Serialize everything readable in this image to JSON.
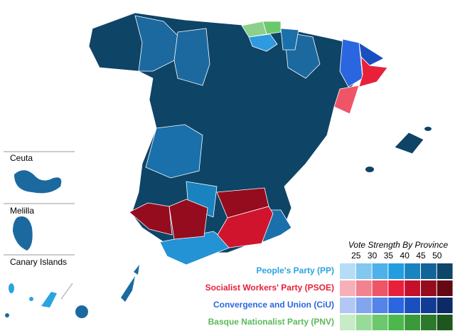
{
  "insets": [
    {
      "label": "Ceuta"
    },
    {
      "label": "Melilla"
    },
    {
      "label": "Canary Islands"
    }
  ],
  "legend": {
    "title": "Vote Strength By Province",
    "scale": [
      25,
      30,
      35,
      40,
      45,
      50
    ],
    "parties": [
      {
        "name": "People's Party (PP)",
        "color": "#2aa3e3",
        "shades": [
          "#b5def6",
          "#82c7f0",
          "#4fb1ea",
          "#239ddf",
          "#1983c0",
          "#11649a",
          "#0d4668"
        ]
      },
      {
        "name": "Socialist Workers' Party (PSOE)",
        "color": "#e8203a",
        "shades": [
          "#f6b0b9",
          "#f2828f",
          "#ee5566",
          "#e8203a",
          "#c5102c",
          "#950c1f",
          "#640814"
        ]
      },
      {
        "name": "Convergence and Union (CiU)",
        "color": "#2a66e0",
        "shades": [
          "#b2c8f4",
          "#82a5ee",
          "#5484e8",
          "#2a66e0",
          "#1a4fc0",
          "#123c94",
          "#0c2a66"
        ]
      },
      {
        "name": "Basque Nationalist Party (PNV)",
        "color": "#5cb85c",
        "shades": [
          "#c6ebc6",
          "#98da98",
          "#6cc86c",
          "#4cb84c",
          "#3a9a3a",
          "#2b792b",
          "#1d571d"
        ]
      }
    ]
  }
}
